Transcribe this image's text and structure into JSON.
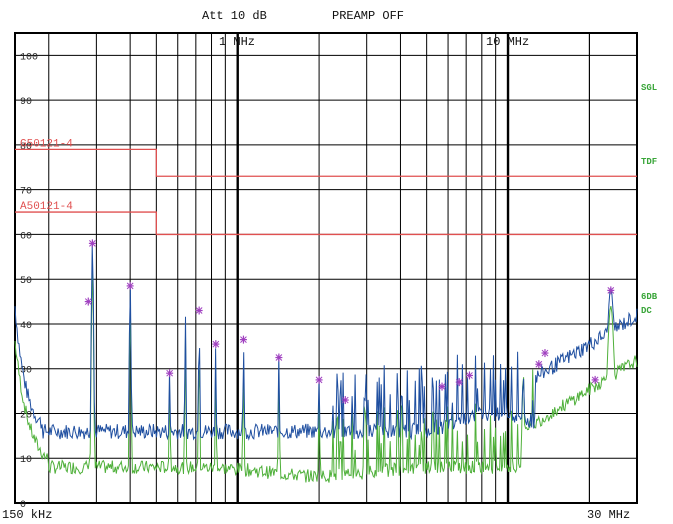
{
  "header": {
    "att": "Att 10 dB",
    "preamp": "PREAMP OFF"
  },
  "chart_data": {
    "type": "line",
    "title": "",
    "x_scale": "log",
    "xlim": [
      150000,
      30000000
    ],
    "ylim": [
      0,
      105
    ],
    "x_labels": {
      "start": "150 kHz",
      "end": "30 MHz",
      "mark_1mhz": "1 MHz",
      "mark_10mhz": "10 MHz"
    },
    "y_ticks": [
      "0",
      "10",
      "20",
      "30",
      "40",
      "50",
      "60",
      "70",
      "80",
      "90",
      "100"
    ],
    "right_labels": {
      "sgl": "SGL",
      "tdf": "TDF",
      "det1": "6DB",
      "det2": "DC"
    },
    "limit_lines": [
      {
        "name": "G50121-4",
        "segments": [
          [
            150000,
            500000,
            79
          ],
          [
            500000,
            30000000,
            73
          ]
        ]
      },
      {
        "name": "A50121-4",
        "segments": [
          [
            150000,
            500000,
            65
          ],
          [
            500000,
            30000000,
            60
          ]
        ]
      }
    ],
    "series": [
      {
        "name": "",
        "values": []
      },
      {
        "name": "",
        "values": []
      }
    ],
    "markers": [
      {
        "x": 280000,
        "y": 45
      },
      {
        "x": 290000,
        "y": 58
      },
      {
        "x": 400000,
        "y": 48.5
      },
      {
        "x": 560000,
        "y": 29
      },
      {
        "x": 720000,
        "y": 43
      },
      {
        "x": 830000,
        "y": 35.5
      },
      {
        "x": 1050000,
        "y": 36.5
      },
      {
        "x": 1420000,
        "y": 32.5
      },
      {
        "x": 2000000,
        "y": 27.5
      },
      {
        "x": 2500000,
        "y": 23
      },
      {
        "x": 5700000,
        "y": 26
      },
      {
        "x": 6600000,
        "y": 27
      },
      {
        "x": 7200000,
        "y": 28.5
      },
      {
        "x": 13000000,
        "y": 31
      },
      {
        "x": 13700000,
        "y": 33.5
      },
      {
        "x": 21000000,
        "y": 27.5
      },
      {
        "x": 24000000,
        "y": 47.5
      }
    ]
  },
  "colors": {
    "grid": "#000000",
    "limit": "#e05050",
    "series_peak": "#1f4fa0",
    "series_avg": "#4fb03a",
    "marker": "#a040c0",
    "label_green": "#3aa63a"
  }
}
